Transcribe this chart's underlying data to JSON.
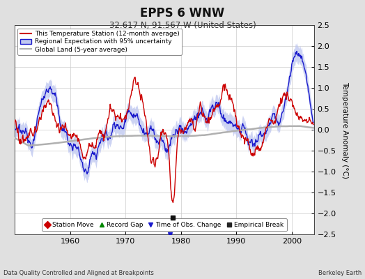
{
  "title": "EPPS 6 WNW",
  "subtitle": "32.617 N, 91.567 W (United States)",
  "ylabel": "Temperature Anomaly (°C)",
  "xlabel_left": "Data Quality Controlled and Aligned at Breakpoints",
  "xlabel_right": "Berkeley Earth",
  "ylim": [
    -2.5,
    2.5
  ],
  "xlim": [
    1950,
    2004
  ],
  "yticks": [
    -2.5,
    -2,
    -1.5,
    -1,
    -0.5,
    0,
    0.5,
    1,
    1.5,
    2,
    2.5
  ],
  "xticks": [
    1960,
    1970,
    1980,
    1990,
    2000
  ],
  "bg_color": "#e0e0e0",
  "plot_bg_color": "#ffffff",
  "red_color": "#cc0000",
  "blue_color": "#1a1acc",
  "blue_fill_color": "#c0c8f0",
  "gray_color": "#b0b0b0",
  "legend_items": [
    {
      "label": "This Temperature Station (12-month average)",
      "color": "#cc0000"
    },
    {
      "label": "Regional Expectation with 95% uncertainty",
      "color": "#1a1acc"
    },
    {
      "label": "Global Land (5-year average)",
      "color": "#b0b0b0"
    }
  ],
  "marker_legend": [
    {
      "label": "Station Move",
      "color": "#cc0000",
      "marker": "D"
    },
    {
      "label": "Record Gap",
      "color": "#008800",
      "marker": "^"
    },
    {
      "label": "Time of Obs. Change",
      "color": "#1a1acc",
      "marker": "v"
    },
    {
      "label": "Empirical Break",
      "color": "#222222",
      "marker": "s"
    }
  ],
  "empirical_break_year": 1978.5,
  "empirical_break_value": -2.1,
  "tobs_change_year": 1978.0,
  "tobs_change_value": -2.5
}
